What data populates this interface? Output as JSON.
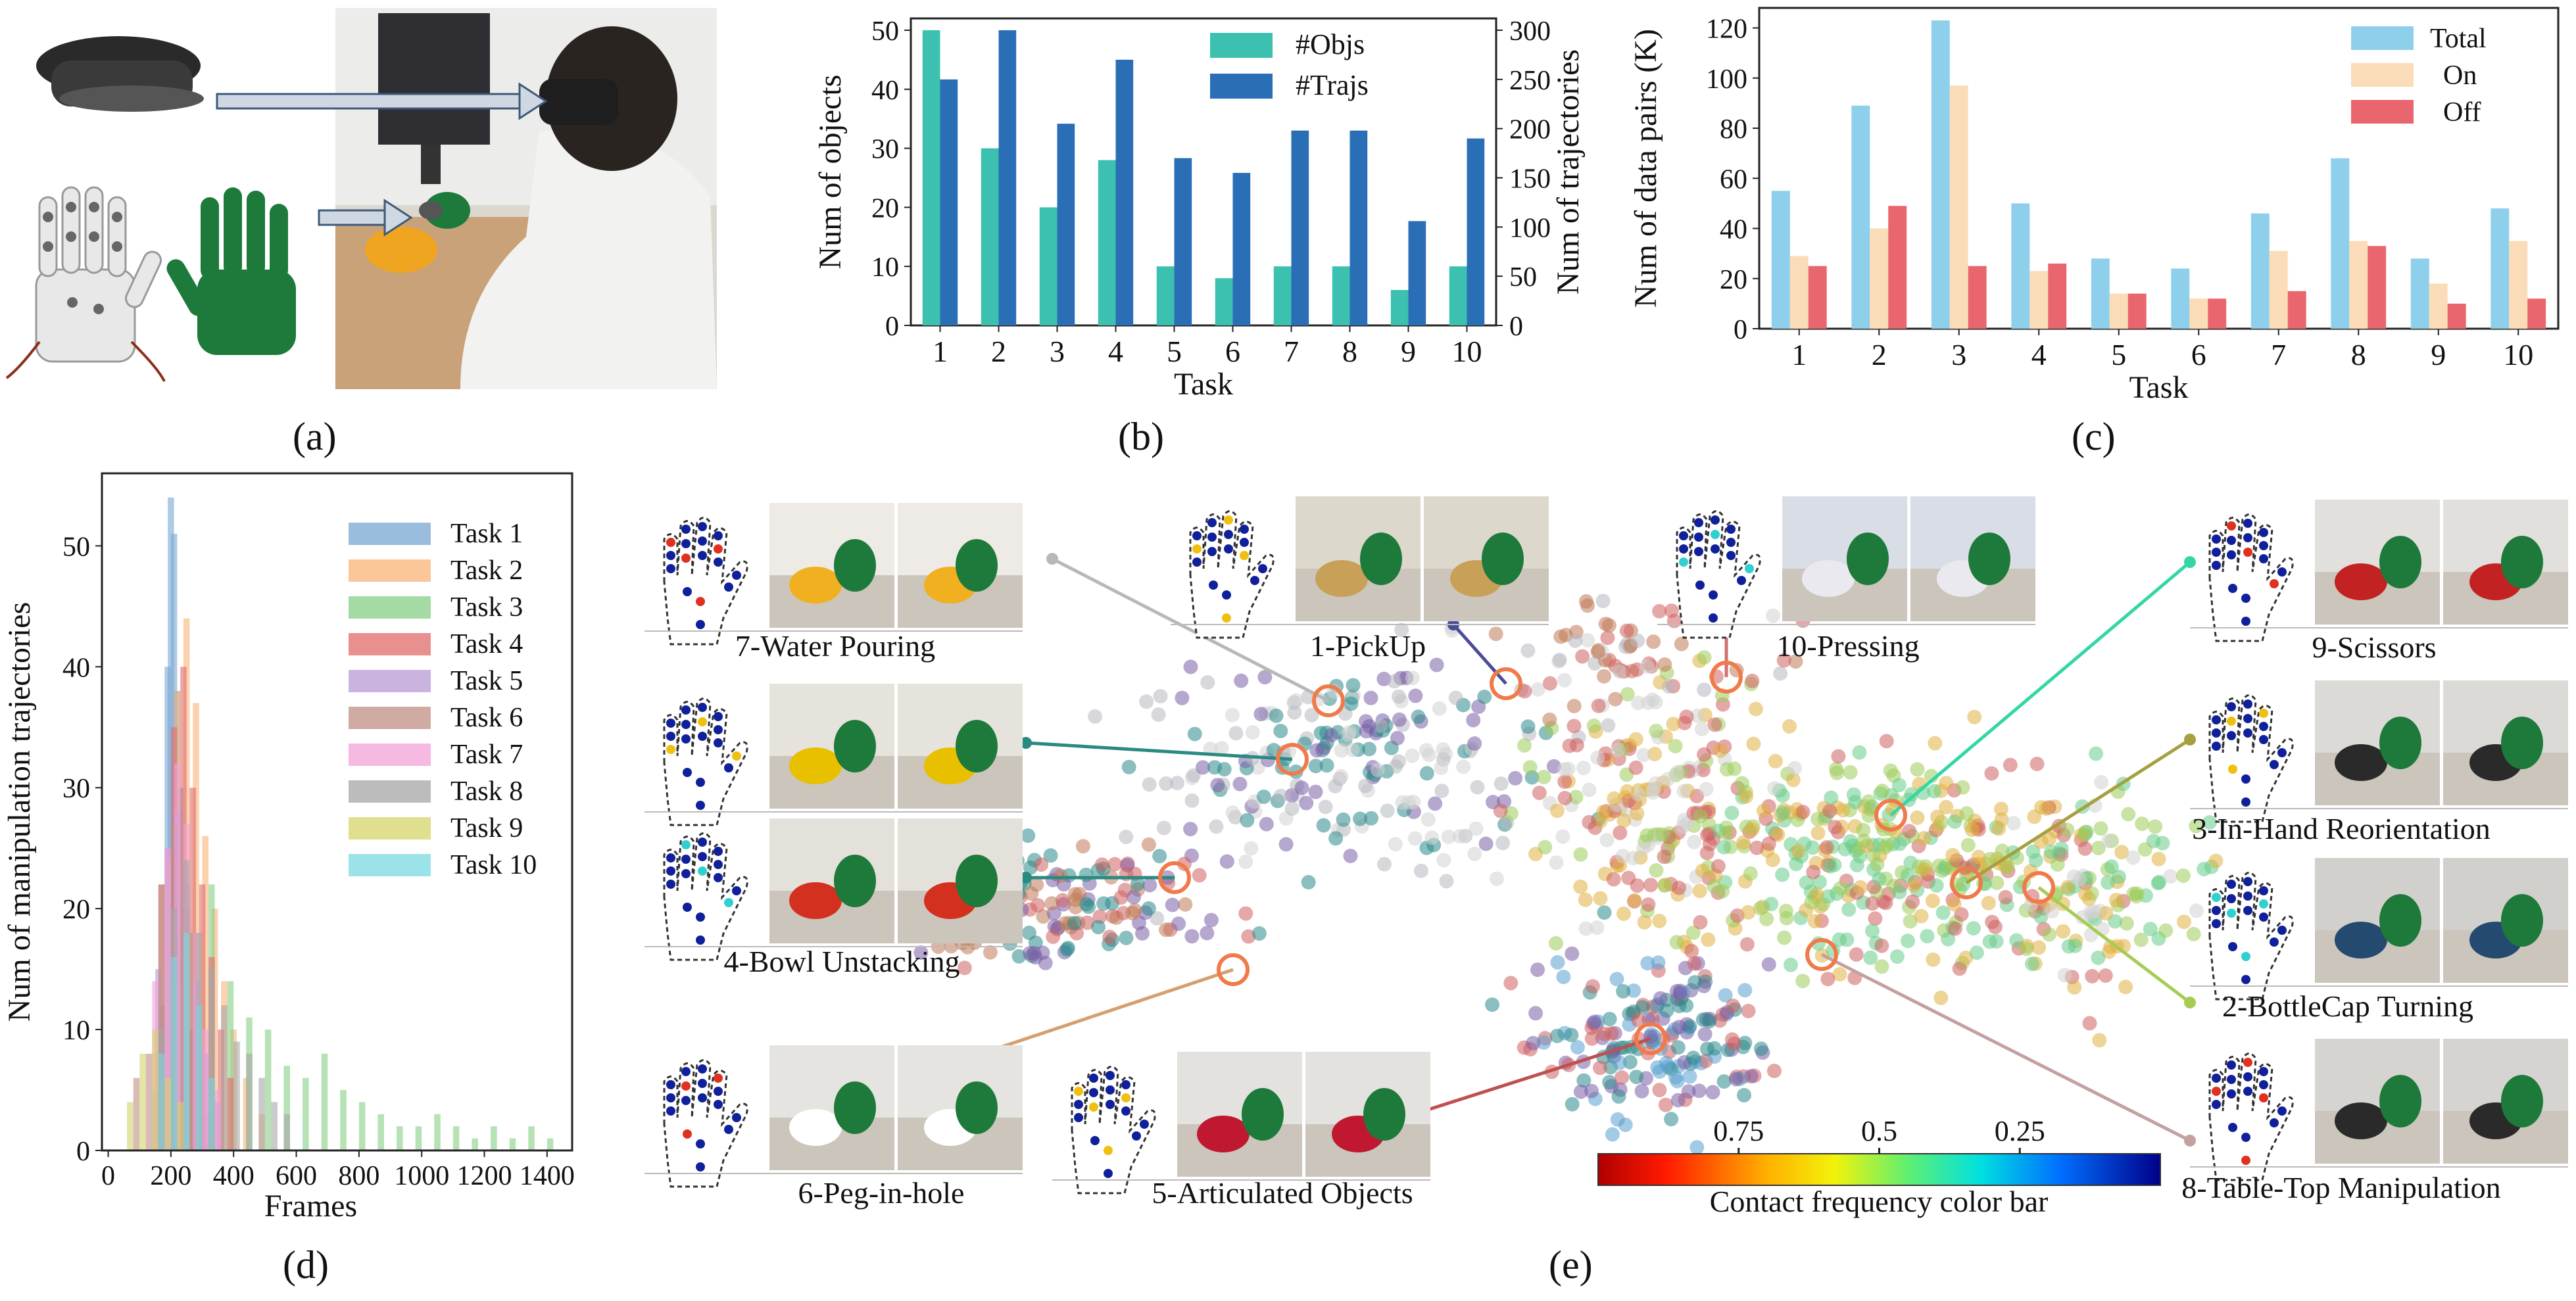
{
  "panel_labels": [
    "(a)",
    "(b)",
    "(c)",
    "(d)",
    "(e)"
  ],
  "chart_data": [
    {
      "id": "b",
      "type": "bar",
      "categories": [
        "1",
        "2",
        "3",
        "4",
        "5",
        "6",
        "7",
        "8",
        "9",
        "10"
      ],
      "series": [
        {
          "name": "#Objs",
          "axis": "left",
          "color": "#3cc0b0",
          "values": [
            50,
            30,
            20,
            28,
            10,
            8,
            10,
            10,
            6,
            10
          ]
        },
        {
          "name": "#Trajs",
          "axis": "right",
          "color": "#2a6fb6",
          "values": [
            250,
            300,
            205,
            270,
            170,
            155,
            198,
            198,
            106,
            190
          ]
        }
      ],
      "xlabel": "Task",
      "ylabel": "Num of objects",
      "ylabel_right": "Num of trajectories",
      "ylim": [
        0,
        52
      ],
      "ylim_right": [
        0,
        312
      ],
      "yticks": [
        "0",
        "10",
        "20",
        "30",
        "40",
        "50"
      ],
      "yticks_right": [
        "0",
        "50",
        "100",
        "150",
        "200",
        "250",
        "300"
      ],
      "legend": "top-right"
    },
    {
      "id": "c",
      "type": "bar",
      "categories": [
        "1",
        "2",
        "3",
        "4",
        "5",
        "6",
        "7",
        "8",
        "9",
        "10"
      ],
      "series": [
        {
          "name": "Total",
          "color": "#8ed0ec",
          "values": [
            55,
            89,
            123,
            50,
            28,
            24,
            46,
            68,
            28,
            48
          ]
        },
        {
          "name": "On",
          "color": "#fadcb8",
          "values": [
            29,
            40,
            97,
            23,
            14,
            12,
            31,
            35,
            18,
            35
          ]
        },
        {
          "name": "Off",
          "color": "#e9666e",
          "values": [
            25,
            49,
            25,
            26,
            14,
            12,
            15,
            33,
            10,
            12
          ]
        }
      ],
      "xlabel": "Task",
      "ylabel": "Num of data pairs (K)",
      "ylim": [
        0,
        128
      ],
      "yticks": [
        "0",
        "20",
        "40",
        "60",
        "80",
        "100",
        "120"
      ],
      "legend": "top-right"
    },
    {
      "id": "d",
      "type": "bar",
      "subtype": "histogram",
      "xlabel": "Frames",
      "ylabel": "Num of manipulation trajectories",
      "xlim": [
        -20,
        1480
      ],
      "ylim": [
        0,
        56
      ],
      "xticks": [
        "0",
        "200",
        "400",
        "600",
        "800",
        "1000",
        "1200",
        "1400"
      ],
      "yticks": [
        "0",
        "10",
        "20",
        "30",
        "40",
        "50"
      ],
      "legend": "top-right",
      "series": [
        {
          "name": "Task 1",
          "color": "#7aa7d2",
          "bins": [
            [
              160,
              12
            ],
            [
              180,
              40
            ],
            [
              190,
              54
            ],
            [
              200,
              51
            ],
            [
              210,
              38
            ],
            [
              220,
              30
            ],
            [
              240,
              18
            ],
            [
              260,
              10
            ],
            [
              280,
              6
            ],
            [
              300,
              3
            ]
          ]
        },
        {
          "name": "Task 2",
          "color": "#f9b378",
          "bins": [
            [
              140,
              8
            ],
            [
              180,
              24
            ],
            [
              210,
              38
            ],
            [
              240,
              44
            ],
            [
              270,
              37
            ],
            [
              300,
              26
            ],
            [
              330,
              20
            ],
            [
              360,
              14
            ],
            [
              390,
              10
            ],
            [
              430,
              6
            ],
            [
              480,
              3
            ]
          ]
        },
        {
          "name": "Task 3",
          "color": "#86cf86",
          "bins": [
            [
              140,
              5
            ],
            [
              200,
              14
            ],
            [
              260,
              18
            ],
            [
              320,
              22
            ],
            [
              380,
              14
            ],
            [
              440,
              11
            ],
            [
              500,
              10
            ],
            [
              560,
              7
            ],
            [
              620,
              6
            ],
            [
              680,
              8
            ],
            [
              740,
              5
            ],
            [
              800,
              4
            ],
            [
              860,
              3
            ],
            [
              920,
              2
            ],
            [
              980,
              2
            ],
            [
              1040,
              3
            ],
            [
              1100,
              2
            ],
            [
              1160,
              1
            ],
            [
              1220,
              2
            ],
            [
              1280,
              1
            ],
            [
              1340,
              2
            ],
            [
              1400,
              1
            ]
          ]
        },
        {
          "name": "Task 4",
          "color": "#e06b6b",
          "bins": [
            [
              160,
              22
            ],
            [
              200,
              35
            ],
            [
              230,
              40
            ],
            [
              260,
              30
            ],
            [
              290,
              22
            ],
            [
              320,
              16
            ],
            [
              350,
              10
            ],
            [
              380,
              6
            ]
          ]
        },
        {
          "name": "Task 5",
          "color": "#b89ad4",
          "bins": [
            [
              150,
              15
            ],
            [
              180,
              25
            ],
            [
              210,
              28
            ],
            [
              240,
              22
            ],
            [
              270,
              14
            ],
            [
              300,
              8
            ],
            [
              340,
              4
            ]
          ]
        },
        {
          "name": "Task 6",
          "color": "#bf8f84",
          "bins": [
            [
              80,
              6
            ],
            [
              120,
              8
            ],
            [
              160,
              22
            ],
            [
              200,
              27
            ],
            [
              240,
              20
            ],
            [
              280,
              12
            ],
            [
              320,
              6
            ]
          ]
        },
        {
          "name": "Task 7",
          "color": "#f2a2d8",
          "bins": [
            [
              140,
              14
            ],
            [
              180,
              25
            ],
            [
              210,
              32
            ],
            [
              240,
              27
            ],
            [
              270,
              18
            ],
            [
              300,
              10
            ],
            [
              340,
              5
            ]
          ]
        },
        {
          "name": "Task 8",
          "color": "#a6a6a6",
          "bins": [
            [
              160,
              10
            ],
            [
              200,
              20
            ],
            [
              240,
              24
            ],
            [
              280,
              18
            ],
            [
              320,
              15
            ],
            [
              360,
              12
            ],
            [
              400,
              9
            ],
            [
              440,
              8
            ],
            [
              480,
              6
            ],
            [
              520,
              4
            ],
            [
              560,
              3
            ]
          ]
        },
        {
          "name": "Task 9",
          "color": "#d4d46a",
          "bins": [
            [
              60,
              4
            ],
            [
              100,
              8
            ],
            [
              140,
              10
            ],
            [
              180,
              6
            ],
            [
              220,
              4
            ]
          ]
        },
        {
          "name": "Task 10",
          "color": "#7ad8e2",
          "bins": [
            [
              160,
              8
            ],
            [
              200,
              16
            ],
            [
              240,
              18
            ],
            [
              280,
              12
            ],
            [
              320,
              6
            ]
          ]
        }
      ]
    }
  ],
  "panel_e": {
    "colorbar_label": "Contact frequency color bar",
    "colorbar_ticks": [
      {
        "label": "0.75",
        "value": 0.75
      },
      {
        "label": "0.5",
        "value": 0.5
      },
      {
        "label": "0.25",
        "value": 0.25
      }
    ],
    "tasks": [
      {
        "label": "7-Water Pouring"
      },
      {
        "label": "1-PickUp"
      },
      {
        "label": "10-Pressing"
      },
      {
        "label": "9-Scissors"
      },
      {
        "label": "3-In-Hand Reorientation"
      },
      {
        "label": "2-BottleCap Turning"
      },
      {
        "label": "8-Table-Top Manipulation"
      },
      {
        "label": "4-Bowl Unstacking"
      },
      {
        "label": "6-Peg-in-hole"
      },
      {
        "label": "5-Articulated Objects"
      }
    ]
  }
}
